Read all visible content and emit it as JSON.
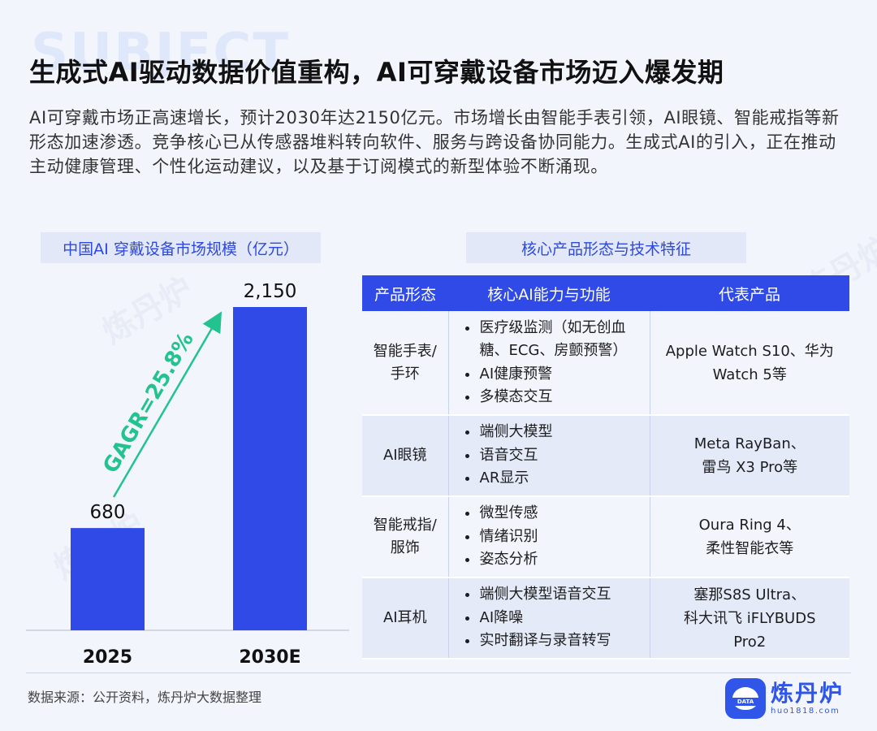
{
  "header": {
    "bg_word": "SUBJECT",
    "title": "生成式AI驱动数据价值重构，AI可穿戴设备市场迈入爆发期",
    "description": "AI可穿戴市场正高速增长，预计2030年达2150亿元。市场增长由智能手表引领，AI眼镜、智能戒指等新形态加速渗透。竞争核心已从传感器堆料转向软件、服务与跨设备协同能力。生成式AI的引入，正在推动主动健康管理、个性化运动建议，以及基于订阅模式的新型体验不断涌现。"
  },
  "chart_data": {
    "type": "bar",
    "title": "中国AI 穿戴设备市场规模（亿元）",
    "categories": [
      "2025",
      "2030E"
    ],
    "values": [
      680,
      2150
    ],
    "value_labels": [
      "680",
      "2,150"
    ],
    "ylim": [
      0,
      2150
    ],
    "bar_color": "#2f4ae6",
    "annotation": "GAGR=25.8%",
    "annotation_color": "#23c38f",
    "grid": false
  },
  "table": {
    "title": "核心产品形态与技术特征",
    "headers": [
      "产品形态",
      "核心AI能力与功能",
      "代表产品"
    ],
    "rows": [
      {
        "form": [
          "智能手表/",
          "手环"
        ],
        "features": [
          "医疗级监测（如无创血",
          "糖、ECG、房颤预警）",
          "AI健康预警",
          "多模态交互"
        ],
        "products": [
          "Apple Watch S10、华为",
          "Watch 5等"
        ]
      },
      {
        "form": [
          "AI眼镜"
        ],
        "features": [
          "端侧大模型",
          "语音交互",
          "AR显示"
        ],
        "products": [
          "Meta RayBan、",
          "雷鸟 X3 Pro等"
        ]
      },
      {
        "form": [
          "智能戒指/",
          "服饰"
        ],
        "features": [
          "微型传感",
          "情绪识别",
          "姿态分析"
        ],
        "products": [
          "Oura Ring 4、",
          "柔性智能衣等"
        ]
      },
      {
        "form": [
          "AI耳机"
        ],
        "features": [
          "端侧大模型语音交互",
          "AI降噪",
          "实时翻译与录音转写"
        ],
        "products": [
          "塞那S8S Ultra、",
          "科大讯飞 iFLYBUDS",
          "Pro2"
        ]
      }
    ]
  },
  "footer": {
    "source": "数据来源：公开资料，炼丹炉大数据整理",
    "logo_name": "炼丹炉",
    "logo_url": "huo1818.com",
    "logo_badge": "DATA"
  }
}
